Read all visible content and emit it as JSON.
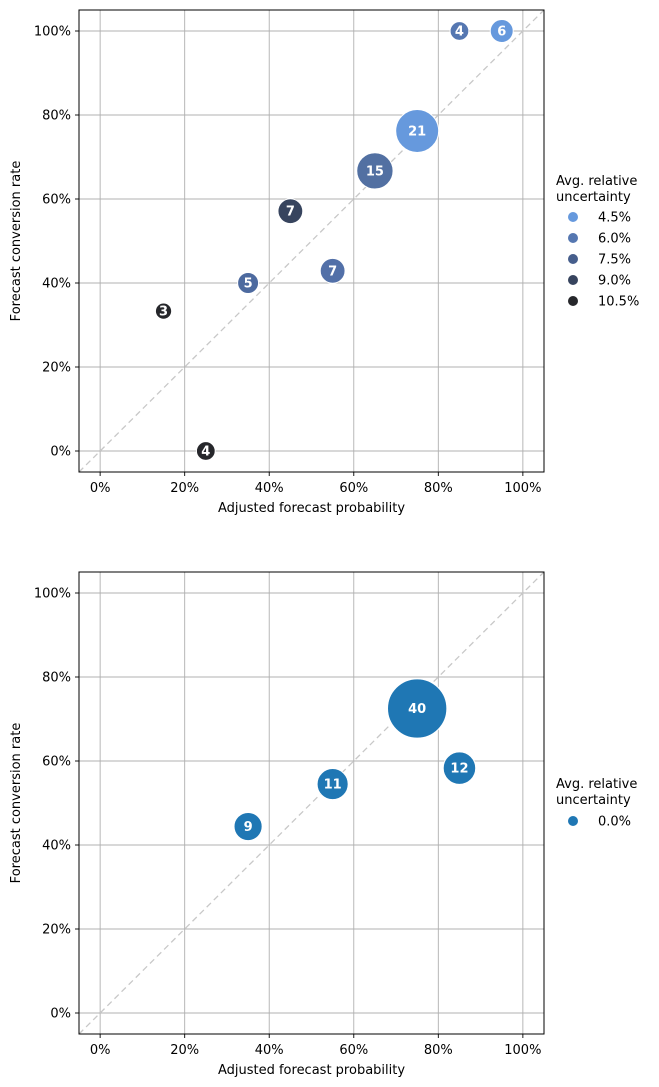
{
  "chart_data": [
    {
      "type": "scatter",
      "xlabel": "Adjusted forecast probability",
      "ylabel": "Forecast conversion rate",
      "xlim": [
        -0.05,
        1.05
      ],
      "ylim": [
        -0.05,
        1.05
      ],
      "ticks": [
        0,
        0.2,
        0.4,
        0.6,
        0.8,
        1.0
      ],
      "tick_labels": [
        "0%",
        "20%",
        "40%",
        "60%",
        "80%",
        "100%"
      ],
      "grid": true,
      "diagonal_reference": true,
      "legend": {
        "title_lines": [
          "Avg. relative",
          "uncertainty"
        ],
        "placement": "right",
        "entries": [
          {
            "label": "4.5%",
            "color": "#6699dd"
          },
          {
            "label": "6.0%",
            "color": "#5577b1"
          },
          {
            "label": "7.5%",
            "color": "#465e8c"
          },
          {
            "label": "9.0%",
            "color": "#37445e"
          },
          {
            "label": "10.5%",
            "color": "#26272b"
          }
        ]
      },
      "points": [
        {
          "x": 0.15,
          "y": 0.333,
          "count": 3,
          "label": "3",
          "color": "#26272b"
        },
        {
          "x": 0.25,
          "y": 0.0,
          "count": 4,
          "label": "4",
          "color": "#26272b"
        },
        {
          "x": 0.35,
          "y": 0.4,
          "count": 5,
          "label": "5",
          "color": "#4d6a9f"
        },
        {
          "x": 0.45,
          "y": 0.571,
          "count": 7,
          "label": "7",
          "color": "#37445e"
        },
        {
          "x": 0.55,
          "y": 0.429,
          "count": 7,
          "label": "7",
          "color": "#5270a8"
        },
        {
          "x": 0.65,
          "y": 0.667,
          "count": 15,
          "label": "15",
          "color": "#5270a2"
        },
        {
          "x": 0.75,
          "y": 0.762,
          "count": 21,
          "label": "21",
          "color": "#6699dd"
        },
        {
          "x": 0.85,
          "y": 1.0,
          "count": 4,
          "label": "4",
          "color": "#5577b1"
        },
        {
          "x": 0.95,
          "y": 1.0,
          "count": 6,
          "label": "6",
          "color": "#6699dd"
        }
      ]
    },
    {
      "type": "scatter",
      "xlabel": "Adjusted forecast probability",
      "ylabel": "Forecast conversion rate",
      "xlim": [
        -0.05,
        1.05
      ],
      "ylim": [
        -0.05,
        1.05
      ],
      "ticks": [
        0,
        0.2,
        0.4,
        0.6,
        0.8,
        1.0
      ],
      "tick_labels": [
        "0%",
        "20%",
        "40%",
        "60%",
        "80%",
        "100%"
      ],
      "grid": true,
      "diagonal_reference": true,
      "legend": {
        "title_lines": [
          "Avg. relative",
          "uncertainty"
        ],
        "placement": "right",
        "entries": [
          {
            "label": "0.0%",
            "color": "#1f77b4"
          }
        ]
      },
      "points": [
        {
          "x": 0.35,
          "y": 0.444,
          "count": 9,
          "label": "9",
          "color": "#1f77b4"
        },
        {
          "x": 0.55,
          "y": 0.545,
          "count": 11,
          "label": "11",
          "color": "#1f77b4"
        },
        {
          "x": 0.75,
          "y": 0.725,
          "count": 40,
          "label": "40",
          "color": "#1f77b4"
        },
        {
          "x": 0.85,
          "y": 0.583,
          "count": 12,
          "label": "12",
          "color": "#1f77b4"
        }
      ]
    }
  ]
}
